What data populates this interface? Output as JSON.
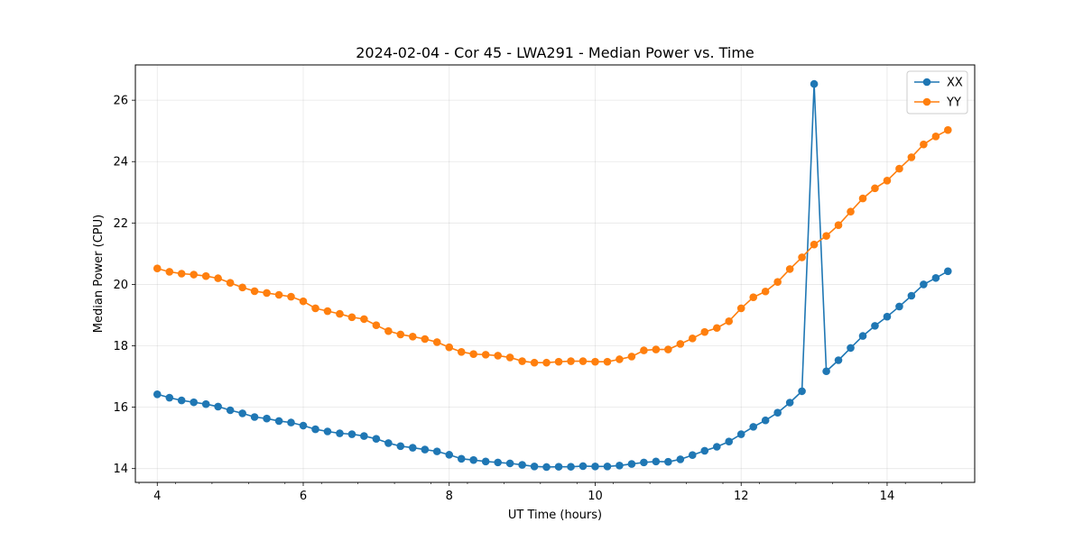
{
  "chart_data": {
    "type": "line",
    "title": "2024-02-04 - Cor 45 - LWA291 - Median Power vs. Time",
    "xlabel": "UT Time (hours)",
    "ylabel": "Median Power (CPU)",
    "xlim": [
      3.7,
      15.2
    ],
    "ylim": [
      13.55,
      27.15
    ],
    "xticks": [
      4,
      6,
      8,
      10,
      12,
      14
    ],
    "yticks": [
      14,
      16,
      18,
      20,
      22,
      24,
      26
    ],
    "grid": true,
    "legend_position": "top-right",
    "colors": {
      "XX": "#1f77b4",
      "YY": "#ff7f0e"
    },
    "series": [
      {
        "name": "XX",
        "points": [
          [
            4.0,
            16.42
          ],
          [
            4.167,
            16.31
          ],
          [
            4.333,
            16.22
          ],
          [
            4.5,
            16.16
          ],
          [
            4.667,
            16.1
          ],
          [
            4.833,
            16.02
          ],
          [
            5.0,
            15.9
          ],
          [
            5.167,
            15.8
          ],
          [
            5.333,
            15.68
          ],
          [
            5.5,
            15.63
          ],
          [
            5.667,
            15.55
          ],
          [
            5.833,
            15.5
          ],
          [
            6.0,
            15.4
          ],
          [
            6.167,
            15.28
          ],
          [
            6.333,
            15.21
          ],
          [
            6.5,
            15.15
          ],
          [
            6.667,
            15.12
          ],
          [
            6.833,
            15.06
          ],
          [
            7.0,
            14.97
          ],
          [
            7.167,
            14.83
          ],
          [
            7.333,
            14.73
          ],
          [
            7.5,
            14.68
          ],
          [
            7.667,
            14.62
          ],
          [
            7.833,
            14.56
          ],
          [
            8.0,
            14.45
          ],
          [
            8.167,
            14.32
          ],
          [
            8.333,
            14.28
          ],
          [
            8.5,
            14.23
          ],
          [
            8.667,
            14.2
          ],
          [
            8.833,
            14.17
          ],
          [
            9.0,
            14.12
          ],
          [
            9.167,
            14.07
          ],
          [
            9.333,
            14.05
          ],
          [
            9.5,
            14.06
          ],
          [
            9.667,
            14.06
          ],
          [
            9.833,
            14.08
          ],
          [
            10.0,
            14.07
          ],
          [
            10.167,
            14.07
          ],
          [
            10.333,
            14.1
          ],
          [
            10.5,
            14.15
          ],
          [
            10.667,
            14.2
          ],
          [
            10.833,
            14.23
          ],
          [
            11.0,
            14.22
          ],
          [
            11.167,
            14.3
          ],
          [
            11.333,
            14.44
          ],
          [
            11.5,
            14.58
          ],
          [
            11.667,
            14.71
          ],
          [
            11.833,
            14.88
          ],
          [
            12.0,
            15.12
          ],
          [
            12.167,
            15.36
          ],
          [
            12.333,
            15.57
          ],
          [
            12.5,
            15.82
          ],
          [
            12.667,
            16.15
          ],
          [
            12.833,
            16.52
          ],
          [
            13.0,
            26.53
          ],
          [
            13.167,
            17.17
          ],
          [
            13.333,
            17.53
          ],
          [
            13.5,
            17.93
          ],
          [
            13.667,
            18.32
          ],
          [
            13.833,
            18.65
          ],
          [
            14.0,
            18.95
          ],
          [
            14.167,
            19.28
          ],
          [
            14.333,
            19.63
          ],
          [
            14.5,
            20.0
          ],
          [
            14.667,
            20.21
          ],
          [
            14.833,
            20.43
          ]
        ]
      },
      {
        "name": "YY",
        "points": [
          [
            4.0,
            20.52
          ],
          [
            4.167,
            20.41
          ],
          [
            4.333,
            20.35
          ],
          [
            4.5,
            20.32
          ],
          [
            4.667,
            20.27
          ],
          [
            4.833,
            20.2
          ],
          [
            5.0,
            20.05
          ],
          [
            5.167,
            19.9
          ],
          [
            5.333,
            19.78
          ],
          [
            5.5,
            19.72
          ],
          [
            5.667,
            19.66
          ],
          [
            5.833,
            19.6
          ],
          [
            6.0,
            19.45
          ],
          [
            6.167,
            19.22
          ],
          [
            6.333,
            19.13
          ],
          [
            6.5,
            19.04
          ],
          [
            6.667,
            18.93
          ],
          [
            6.833,
            18.87
          ],
          [
            7.0,
            18.67
          ],
          [
            7.167,
            18.48
          ],
          [
            7.333,
            18.37
          ],
          [
            7.5,
            18.3
          ],
          [
            7.667,
            18.22
          ],
          [
            7.833,
            18.12
          ],
          [
            8.0,
            17.95
          ],
          [
            8.167,
            17.8
          ],
          [
            8.333,
            17.73
          ],
          [
            8.5,
            17.71
          ],
          [
            8.667,
            17.68
          ],
          [
            8.833,
            17.62
          ],
          [
            9.0,
            17.5
          ],
          [
            9.167,
            17.45
          ],
          [
            9.333,
            17.45
          ],
          [
            9.5,
            17.48
          ],
          [
            9.667,
            17.5
          ],
          [
            9.833,
            17.5
          ],
          [
            10.0,
            17.48
          ],
          [
            10.167,
            17.48
          ],
          [
            10.333,
            17.56
          ],
          [
            10.5,
            17.65
          ],
          [
            10.667,
            17.85
          ],
          [
            10.833,
            17.88
          ],
          [
            11.0,
            17.88
          ],
          [
            11.167,
            18.06
          ],
          [
            11.333,
            18.24
          ],
          [
            11.5,
            18.45
          ],
          [
            11.667,
            18.58
          ],
          [
            11.833,
            18.8
          ],
          [
            12.0,
            19.22
          ],
          [
            12.167,
            19.58
          ],
          [
            12.333,
            19.77
          ],
          [
            12.5,
            20.08
          ],
          [
            12.667,
            20.5
          ],
          [
            12.833,
            20.88
          ],
          [
            13.0,
            21.3
          ],
          [
            13.167,
            21.58
          ],
          [
            13.333,
            21.93
          ],
          [
            13.5,
            22.37
          ],
          [
            13.667,
            22.8
          ],
          [
            13.833,
            23.13
          ],
          [
            14.0,
            23.38
          ],
          [
            14.167,
            23.77
          ],
          [
            14.333,
            24.14
          ],
          [
            14.5,
            24.56
          ],
          [
            14.667,
            24.82
          ],
          [
            14.833,
            25.03
          ]
        ]
      }
    ]
  }
}
